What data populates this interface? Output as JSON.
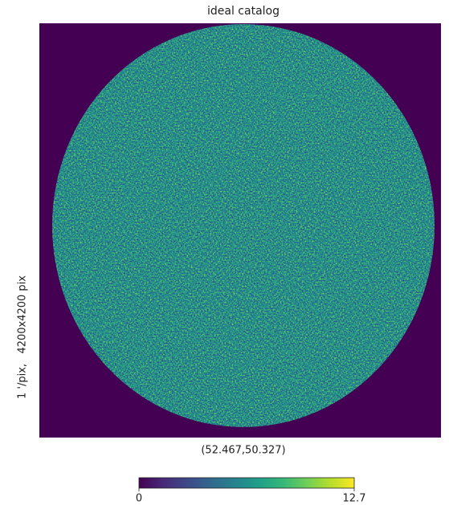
{
  "chart_data": {
    "type": "image",
    "title": "ideal catalog",
    "xlabel": "(52.467,50.327)",
    "ylabel": "1 '/pix,   4200x4200 pix",
    "colormap": "viridis",
    "background": "#440154",
    "colorbar": {
      "clim": [
        0,
        12.7
      ],
      "ticks": [
        0,
        12.7
      ]
    }
  }
}
